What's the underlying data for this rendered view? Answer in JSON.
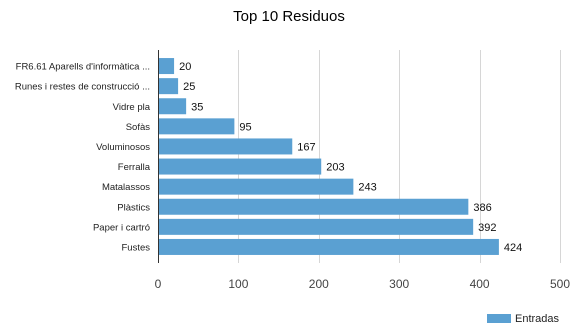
{
  "chart_data": {
    "type": "bar",
    "orientation": "horizontal",
    "title": "Top 10 Residuos",
    "categories": [
      "FR6.61 Aparells d'informàtica ...",
      "Runes i restes de construcció ...",
      "Vidre pla",
      "Sofàs",
      "Voluminosos",
      "Ferralla",
      "Matalassos",
      "Plàstics",
      "Paper i cartró",
      "Fustes"
    ],
    "series": [
      {
        "name": "Entradas",
        "values": [
          20,
          25,
          35,
          95,
          167,
          203,
          243,
          386,
          392,
          424
        ]
      }
    ],
    "xlim": [
      0,
      500
    ],
    "xticks": [
      0,
      100,
      200,
      300,
      400,
      500
    ],
    "grid": true,
    "legend": "bottom-right",
    "colors": {
      "bar": "#5aa0d2"
    }
  }
}
